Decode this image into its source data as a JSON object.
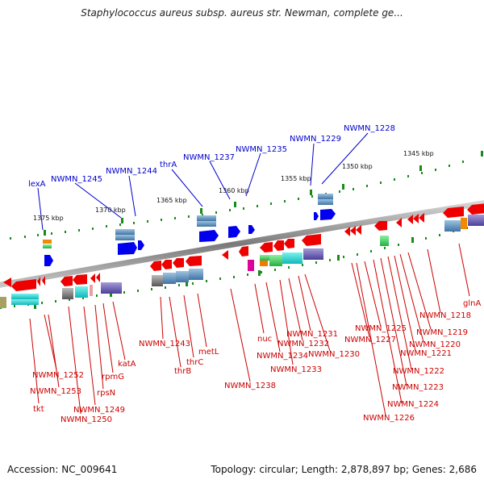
{
  "title": "Staphylococcus aureus subsp. aureus str. Newman, complete ge...",
  "accession": "Accession: NC_009641",
  "summary": "Topology: circular; Length: 2,878,897 bp; Genes: 2,686",
  "colors": {
    "backbone": "#888888",
    "forward_label": "#0000cc",
    "reverse_label": "#cc0000",
    "forward_gene": "#0000ee",
    "reverse_gene": "#ee0000",
    "ticks": "#1a8a1a",
    "cds_bar": "#4e86b8",
    "cds_bar_purple": "#5b4fa8"
  },
  "scale_labels": [
    "1375 kbp",
    "1370 kbp",
    "1365 kbp",
    "1360 kbp",
    "1355 kbp",
    "1350 kbp",
    "1345 kbp"
  ],
  "forward_labels": [
    "lexA",
    "NWMN_1245",
    "NWMN_1244",
    "thrA",
    "NWMN_1237",
    "NWMN_1235",
    "NWMN_1229",
    "NWMN_1228"
  ],
  "reverse_labels": [
    "NWMN_1252",
    "NWMN_1253",
    "tkt",
    "NWMN_1250",
    "NWMN_1249",
    "rpsN",
    "rpmG",
    "katA",
    "NWMN_1243",
    "thrB",
    "thrC",
    "metL",
    "NWMN_1238",
    "nuc",
    "NWMN_1234",
    "NWMN_1233",
    "NWMN_1232",
    "NWMN_1231",
    "NWMN_1230",
    "NWMN_1227",
    "NWMN_1226",
    "NWMN_1225",
    "NWMN_1224",
    "NWMN_1223",
    "NWMN_1222",
    "NWMN_1221",
    "NWMN_1220",
    "NWMN_1219",
    "NWMN_1218",
    "glnA"
  ]
}
